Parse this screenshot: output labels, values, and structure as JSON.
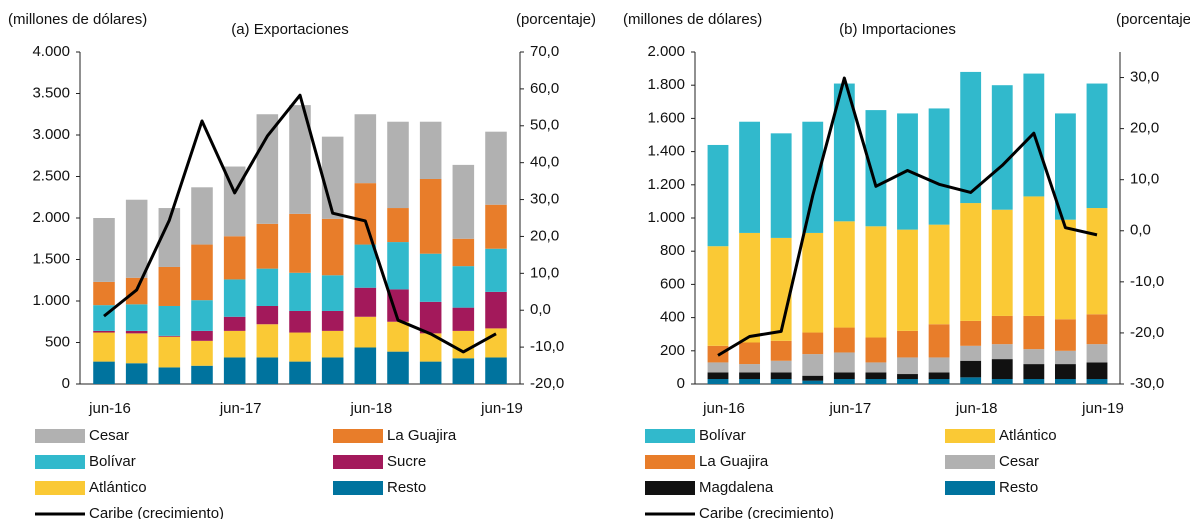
{
  "chart_data": [
    {
      "type": "bar",
      "stacked": true,
      "title": "(a) Exportaciones",
      "y_label": "(millones  de dólares)",
      "y2_label": "(porcentaje)",
      "categories": [
        "jun-16",
        null,
        null,
        null,
        "jun-17",
        null,
        null,
        null,
        "jun-18",
        null,
        null,
        null,
        "jun-19"
      ],
      "ylim": [
        0,
        4000
      ],
      "yticks": [
        0,
        {
          "value": 500,
          "label": "500"
        },
        {
          "value": 1000,
          "label": "1.000"
        },
        {
          "value": 1500,
          "label": "1.500"
        },
        {
          "value": 2000,
          "label": "2.000"
        },
        {
          "value": 2500,
          "label": "2.500"
        },
        {
          "value": 3000,
          "label": "3.000"
        },
        {
          "value": 3500,
          "label": "3.500"
        },
        {
          "value": 4000,
          "label": "4.000"
        }
      ],
      "y2lim": [
        -20,
        70
      ],
      "y2ticks": [
        {
          "value": -20,
          "label": "-20,0"
        },
        {
          "value": -10,
          "label": "-10,0"
        },
        {
          "value": 0,
          "label": "0,0"
        },
        {
          "value": 10,
          "label": "10,0"
        },
        {
          "value": 20,
          "label": "20,0"
        },
        {
          "value": 30,
          "label": "30,0"
        },
        {
          "value": 40,
          "label": "40,0"
        },
        {
          "value": 50,
          "label": "50,0"
        },
        {
          "value": 60,
          "label": "60,0"
        },
        {
          "value": 70,
          "label": "70,0"
        }
      ],
      "series": [
        {
          "name": "Cesar",
          "color": "#b1b1b1",
          "values": [
            770,
            940,
            710,
            690,
            840,
            1320,
            1310,
            990,
            830,
            1040,
            690,
            890,
            880
          ]
        },
        {
          "name": "La Guajira",
          "color": "#e87d2a",
          "values": [
            280,
            320,
            470,
            670,
            520,
            540,
            710,
            680,
            740,
            410,
            900,
            330,
            530
          ]
        },
        {
          "name": "Bolívar",
          "color": "#31b9cc",
          "values": [
            310,
            320,
            360,
            370,
            450,
            450,
            460,
            430,
            520,
            570,
            580,
            500,
            520
          ]
        },
        {
          "name": "Sucre",
          "color": "#a3195b",
          "values": [
            20,
            30,
            10,
            120,
            170,
            220,
            260,
            240,
            350,
            390,
            380,
            280,
            440
          ]
        },
        {
          "name": "Atlántico",
          "color": "#fac935",
          "values": [
            350,
            360,
            370,
            300,
            320,
            400,
            350,
            320,
            370,
            360,
            340,
            330,
            350
          ]
        },
        {
          "name": "Resto",
          "color": "#00739e",
          "values": [
            270,
            250,
            200,
            220,
            320,
            320,
            270,
            320,
            440,
            390,
            270,
            310,
            320
          ]
        },
        {
          "name": "Caribe (crecimiento)",
          "color": "#000000",
          "type": "line",
          "axis": "y2",
          "values": [
            -1.6,
            5.5,
            24.4,
            51.3,
            31.8,
            47.2,
            58.3,
            26.3,
            24.2,
            -2.7,
            -6.4,
            -11.3,
            -6.4
          ]
        }
      ]
    },
    {
      "type": "bar",
      "stacked": true,
      "title": "(b) Importaciones",
      "y_label": "(millones  de dólares)",
      "y2_label": "(porcentaje)",
      "categories": [
        "jun-16",
        null,
        null,
        null,
        "jun-17",
        null,
        null,
        null,
        "jun-18",
        null,
        null,
        null,
        "jun-19"
      ],
      "ylim": [
        0,
        2000
      ],
      "yticks": [
        0,
        200,
        400,
        600,
        800,
        {
          "value": 1000,
          "label": "1.000"
        },
        {
          "value": 1200,
          "label": "1.200"
        },
        {
          "value": 1400,
          "label": "1.400"
        },
        {
          "value": 1600,
          "label": "1.600"
        },
        {
          "value": 1800,
          "label": "1.800"
        },
        {
          "value": 2000,
          "label": "2.000"
        }
      ],
      "y2lim": [
        -30,
        35
      ],
      "y2ticks": [
        {
          "value": -30,
          "label": "-30,0"
        },
        {
          "value": -20,
          "label": "-20,0"
        },
        {
          "value": -10,
          "label": "-10,0"
        },
        {
          "value": 0,
          "label": "0,0"
        },
        {
          "value": 10,
          "label": "10,0"
        },
        {
          "value": 20,
          "label": "20,0"
        },
        {
          "value": 30,
          "label": "30,0"
        }
      ],
      "series": [
        {
          "name": "Bolívar",
          "color": "#31b9cc",
          "values": [
            610,
            670,
            630,
            670,
            830,
            700,
            700,
            700,
            790,
            750,
            740,
            640,
            750
          ]
        },
        {
          "name": "Atlántico",
          "color": "#fac935",
          "values": [
            600,
            660,
            620,
            600,
            640,
            670,
            610,
            600,
            710,
            640,
            720,
            600,
            640
          ]
        },
        {
          "name": "La Guajira",
          "color": "#e87d2a",
          "values": [
            100,
            130,
            120,
            130,
            150,
            150,
            160,
            200,
            150,
            170,
            200,
            190,
            180
          ]
        },
        {
          "name": "Cesar",
          "color": "#b1b1b1",
          "values": [
            60,
            50,
            70,
            130,
            120,
            60,
            100,
            90,
            90,
            90,
            90,
            80,
            110
          ]
        },
        {
          "name": "Magdalena",
          "color": "#111111",
          "values": [
            40,
            40,
            40,
            30,
            40,
            40,
            30,
            40,
            100,
            120,
            90,
            90,
            100
          ]
        },
        {
          "name": "Resto",
          "color": "#00739e",
          "values": [
            30,
            30,
            30,
            20,
            30,
            30,
            30,
            30,
            40,
            30,
            30,
            30,
            30
          ]
        },
        {
          "name": "Caribe (crecimiento)",
          "color": "#000000",
          "type": "line",
          "axis": "y2",
          "values": [
            -24.4,
            -20.7,
            -19.7,
            6.9,
            29.9,
            8.7,
            11.8,
            9.1,
            7.5,
            12.8,
            19.1,
            0.6,
            -0.8
          ]
        }
      ]
    }
  ]
}
